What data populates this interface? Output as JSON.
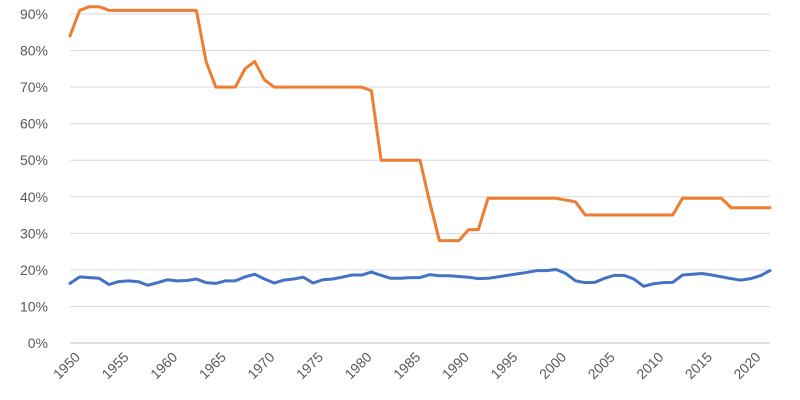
{
  "chart_data": {
    "type": "line",
    "title": "",
    "xlabel": "",
    "ylabel": "",
    "xlim": [
      1950,
      2022
    ],
    "ylim": [
      0,
      0.9
    ],
    "y_ticks": [
      "0%",
      "10%",
      "20%",
      "30%",
      "40%",
      "50%",
      "60%",
      "70%",
      "80%",
      "90%"
    ],
    "x_ticks": [
      "1950",
      "1955",
      "1960",
      "1965",
      "1970",
      "1975",
      "1980",
      "1985",
      "1990",
      "1995",
      "2000",
      "2005",
      "2010",
      "2015",
      "2020"
    ],
    "grid": true,
    "legend": "none",
    "x": [
      1950,
      1951,
      1952,
      1953,
      1954,
      1955,
      1956,
      1957,
      1958,
      1959,
      1960,
      1961,
      1962,
      1963,
      1964,
      1965,
      1966,
      1967,
      1968,
      1969,
      1970,
      1971,
      1972,
      1973,
      1974,
      1975,
      1976,
      1977,
      1978,
      1979,
      1980,
      1981,
      1982,
      1983,
      1984,
      1985,
      1986,
      1987,
      1988,
      1989,
      1990,
      1991,
      1992,
      1993,
      1994,
      1995,
      1996,
      1997,
      1998,
      1999,
      2000,
      2001,
      2002,
      2003,
      2004,
      2005,
      2006,
      2007,
      2008,
      2009,
      2010,
      2011,
      2012,
      2013,
      2014,
      2015,
      2016,
      2017,
      2018,
      2019,
      2020,
      2021,
      2022
    ],
    "series": [
      {
        "color": "#ed7d31",
        "values": [
          0.84,
          0.91,
          0.92,
          0.92,
          0.91,
          0.91,
          0.91,
          0.91,
          0.91,
          0.91,
          0.91,
          0.91,
          0.91,
          0.91,
          0.77,
          0.7,
          0.7,
          0.7,
          0.75,
          0.77,
          0.72,
          0.7,
          0.7,
          0.7,
          0.7,
          0.7,
          0.7,
          0.7,
          0.7,
          0.7,
          0.7,
          0.69,
          0.5,
          0.5,
          0.5,
          0.5,
          0.5,
          0.385,
          0.28,
          0.28,
          0.28,
          0.31,
          0.31,
          0.396,
          0.396,
          0.396,
          0.396,
          0.396,
          0.396,
          0.396,
          0.396,
          0.391,
          0.386,
          0.35,
          0.35,
          0.35,
          0.35,
          0.35,
          0.35,
          0.35,
          0.35,
          0.35,
          0.35,
          0.396,
          0.396,
          0.396,
          0.396,
          0.396,
          0.37,
          0.37,
          0.37,
          0.37,
          0.37
        ]
      },
      {
        "color": "#4472c4",
        "values": [
          0.163,
          0.181,
          0.179,
          0.177,
          0.16,
          0.168,
          0.17,
          0.168,
          0.158,
          0.165,
          0.173,
          0.17,
          0.171,
          0.175,
          0.165,
          0.163,
          0.17,
          0.17,
          0.181,
          0.188,
          0.175,
          0.164,
          0.172,
          0.175,
          0.18,
          0.164,
          0.173,
          0.175,
          0.18,
          0.186,
          0.186,
          0.194,
          0.185,
          0.177,
          0.177,
          0.179,
          0.179,
          0.187,
          0.184,
          0.184,
          0.182,
          0.18,
          0.176,
          0.177,
          0.181,
          0.185,
          0.189,
          0.193,
          0.198,
          0.198,
          0.201,
          0.19,
          0.17,
          0.165,
          0.166,
          0.177,
          0.185,
          0.185,
          0.175,
          0.155,
          0.162,
          0.165,
          0.166,
          0.186,
          0.188,
          0.19,
          0.186,
          0.181,
          0.176,
          0.172,
          0.176,
          0.184,
          0.198
        ]
      }
    ]
  }
}
